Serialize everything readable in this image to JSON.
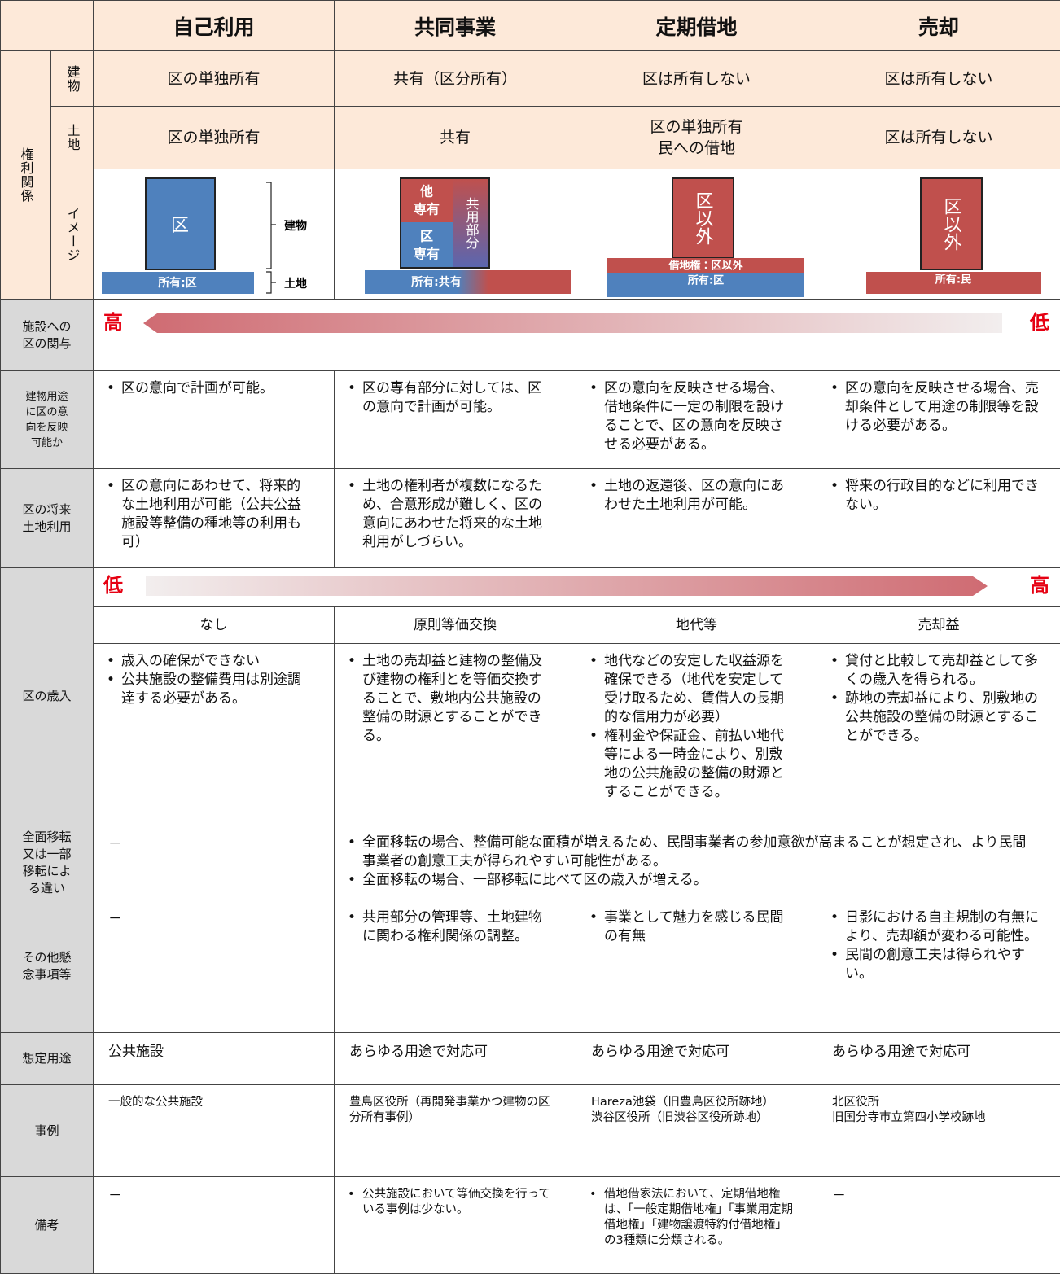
{
  "header": {
    "columns": [
      "自己利用",
      "共同事業",
      "定期借地",
      "売却"
    ]
  },
  "rights": {
    "label": "権利関係",
    "building": {
      "label": "建物",
      "cells": [
        [
          "区の単独所有"
        ],
        [
          "共有（区分所有）"
        ],
        [
          "区は所有しない"
        ],
        [
          "区は所有しない"
        ]
      ]
    },
    "land": {
      "label": "土地",
      "cells": [
        [
          "区の単独所有"
        ],
        [
          "共有"
        ],
        [
          "区の単独所有",
          "民への借地"
        ],
        [
          "区は所有しない"
        ]
      ]
    },
    "image": {
      "label": "イメージ",
      "self": {
        "building": "区",
        "building_label": "建物",
        "land": "所有:区",
        "land_label": "土地"
      },
      "joint": {
        "other": [
          "他",
          "専有"
        ],
        "ward": [
          "区",
          "専有"
        ],
        "common": "共用部分",
        "land": "所有:共有"
      },
      "lease": {
        "building": "区以外",
        "leasehold": "借地権：区以外",
        "land": "所有:区"
      },
      "sale": {
        "building": "区以外",
        "land": "所有:民"
      }
    }
  },
  "involvement": {
    "label": "施設への区の関与",
    "high": "高",
    "low": "低"
  },
  "rows": {
    "use": {
      "label": "建物用途に区の意向を反映可能か",
      "cells": [
        [
          "区の意向で計画が可能。"
        ],
        [
          "区の専有部分に対しては、区の意向で計画が可能。"
        ],
        [
          "区の意向を反映させる場合、借地条件に一定の制限を設けることで、区の意向を反映させる必要がある。"
        ],
        [
          "区の意向を反映させる場合、売却条件として用途の制限等を設ける必要がある。"
        ]
      ]
    },
    "future": {
      "label": "区の将来土地利用",
      "cells": [
        [
          "区の意向にあわせて、将来的な土地利用が可能（公共公益施設等整備の種地等の利用も可）"
        ],
        [
          "土地の権利者が複数になるため、合意形成が難しく、区の意向にあわせた将来的な土地利用がしづらい。"
        ],
        [
          "土地の返還後、区の意向にあわせた土地利用が可能。"
        ],
        [
          "将来の行政目的などに利用できない。"
        ]
      ]
    }
  },
  "revenue": {
    "label": "区の歳入",
    "low": "低",
    "high": "高",
    "summary": [
      "なし",
      "原則等価交換",
      "地代等",
      "売却益"
    ],
    "cells": [
      [
        "歳入の確保ができない",
        "公共施設の整備費用は別途調達する必要がある。"
      ],
      [
        "土地の売却益と建物の整備及び建物の権利とを等価交換することで、敷地内公共施設の整備の財源とすることができる。"
      ],
      [
        "地代などの安定した収益源を確保できる（地代を安定して受け取るため、賃借人の長期的な信用力が必要）",
        "権利金や保証金、前払い地代等による一時金により、別敷地の公共施設の整備の財源とすることができる。"
      ],
      [
        "貸付と比較して売却益として多くの歳入を得られる。",
        "跡地の売却益により、別敷地の公共施設の整備の財源とすることができる。"
      ]
    ]
  },
  "relocation": {
    "label": "全面移転又は一部移転による違い",
    "first": "－",
    "merged": [
      "全面移転の場合、整備可能な面積が増えるため、民間事業者の参加意欲が高まることが想定され、より民間事業者の創意工夫が得られやすい可能性がある。",
      "全面移転の場合、一部移転に比べて区の歳入が増える。"
    ]
  },
  "concerns": {
    "label": "その他懸念事項等",
    "cells": [
      "－",
      [
        "共用部分の管理等、土地建物に関わる権利関係の調整。"
      ],
      [
        "事業として魅力を感じる民間の有無"
      ],
      [
        "日影における自主規制の有無により、売却額が変わる可能性。",
        "民間の創意工夫は得られやすい。"
      ]
    ]
  },
  "purpose": {
    "label": "想定用途",
    "cells": [
      [
        "公共施設"
      ],
      [
        "あらゆる用途で対応可"
      ],
      [
        "あらゆる用途で対応可"
      ],
      [
        "あらゆる用途で対応可"
      ]
    ]
  },
  "examples": {
    "label": "事例",
    "cells": [
      [
        "一般的な公共施設"
      ],
      [
        "豊島区役所（再開発事業かつ建物の区分所有事例）"
      ],
      [
        "Hareza池袋（旧豊島区役所跡地）",
        "渋谷区役所（旧渋谷区役所跡地）"
      ],
      [
        "北区役所",
        "旧国分寺市立第四小学校跡地"
      ]
    ]
  },
  "notes": {
    "label": "備考",
    "cells": [
      "－",
      [
        "公共施設において等価交換を行っている事例は少ない。"
      ],
      [
        "借地借家法において、定期借地権は、「一般定期借地権」「事業用定期借地権」「建物譲渡特約付借地権」の3種類に分類される。"
      ],
      "－"
    ]
  }
}
